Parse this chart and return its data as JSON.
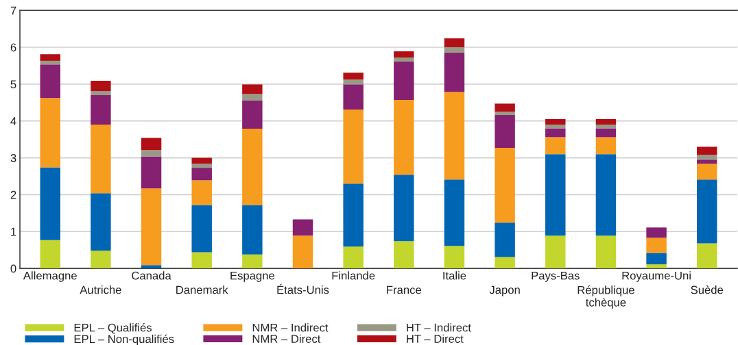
{
  "chart_data": {
    "type": "bar",
    "stacked": true,
    "categories": [
      "Allemagne",
      "Autriche",
      "Canada",
      "Danemark",
      "Espagne",
      "États-Unis",
      "Finlande",
      "France",
      "Italie",
      "Japon",
      "Pays-Bas",
      "République\ntchèque",
      "Royaume-Uni",
      "Suède"
    ],
    "series": [
      {
        "name": "EPL – Qualifiés",
        "color": "#c2d62e",
        "values": [
          0.77,
          0.48,
          null,
          0.44,
          0.38,
          null,
          0.59,
          0.74,
          0.61,
          0.31,
          0.89,
          0.89,
          0.11,
          0.68
        ]
      },
      {
        "name": "EPL – Non-qualifiés",
        "color": "#0066b3",
        "values": [
          1.97,
          1.56,
          0.09,
          1.28,
          1.34,
          null,
          1.71,
          1.8,
          1.8,
          0.93,
          2.21,
          2.21,
          0.31,
          1.73
        ]
      },
      {
        "name": "NMR – Indirect",
        "color": "#f69c1e",
        "values": [
          1.88,
          1.86,
          2.08,
          0.67,
          2.07,
          0.89,
          2.01,
          2.03,
          2.38,
          2.03,
          0.46,
          0.46,
          0.41,
          0.43
        ]
      },
      {
        "name": "NMR – Direct",
        "color": "#862070",
        "values": [
          0.91,
          0.8,
          0.87,
          0.34,
          0.76,
          0.44,
          0.68,
          1.04,
          1.06,
          0.89,
          0.24,
          0.24,
          0.28,
          0.11
        ]
      },
      {
        "name": "HT – Indirect",
        "color": "#999a86",
        "values": [
          0.1,
          0.11,
          0.17,
          0.11,
          0.18,
          null,
          0.13,
          0.11,
          0.15,
          0.09,
          0.1,
          0.1,
          null,
          0.13
        ]
      },
      {
        "name": "HT – Direct",
        "color": "#b10f15",
        "values": [
          0.18,
          0.28,
          0.33,
          0.16,
          0.26,
          null,
          0.19,
          0.17,
          0.24,
          0.22,
          0.15,
          0.15,
          null,
          0.22
        ]
      }
    ],
    "ylim": [
      0,
      7
    ],
    "yticks": [
      0,
      1,
      2,
      3,
      4,
      5,
      6,
      7
    ],
    "grid": "y",
    "legend": "bottom"
  }
}
